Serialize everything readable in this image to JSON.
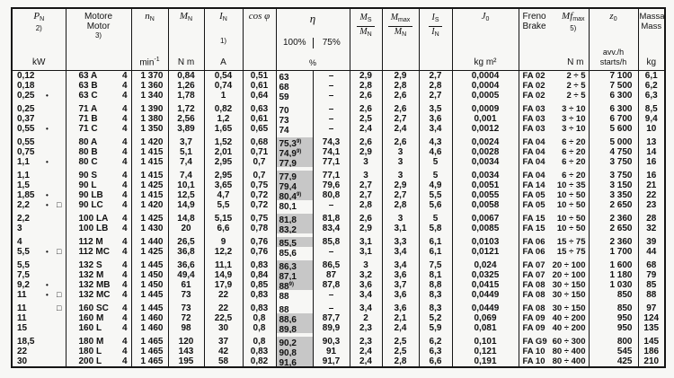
{
  "header": {
    "pn": {
      "sym": "P",
      "sub": "N",
      "note": "2)",
      "unit": "kW"
    },
    "motor": {
      "line1": "Motore",
      "line2": "Motor",
      "note": "3)"
    },
    "n": {
      "sym": "n",
      "sub": "N",
      "unit": "min",
      "unit_sup": "-1"
    },
    "mn": {
      "sym": "M",
      "sub": "N",
      "unit": "N m"
    },
    "iN": {
      "sym": "I",
      "sub": "N",
      "note": "1)",
      "unit": "A"
    },
    "cosphi": {
      "label": "cos φ"
    },
    "eta": {
      "sym": "η",
      "c100": "100%",
      "c75": "75%",
      "unit": "%"
    },
    "ms": {
      "num": "M",
      "num_sub": "S",
      "den": "M",
      "den_sub": "N"
    },
    "mmax": {
      "num": "M",
      "num_sub": "max",
      "den": "M",
      "den_sub": "N"
    },
    "iS": {
      "num": "I",
      "num_sub": "S",
      "den": "I",
      "den_sub": "N"
    },
    "j0": {
      "sym": "J",
      "sub": "0",
      "unit": "kg m²"
    },
    "brake": {
      "line1": "Freno",
      "line2": "Brake",
      "sym": "Mf",
      "sym_sub": "max",
      "note": "5)",
      "unit": "N m"
    },
    "z0": {
      "sym": "z",
      "sub": "0",
      "unit1": "avv./h",
      "unit2": "starts/h"
    },
    "mass": {
      "line1": "Massa",
      "line2": "Mass",
      "unit": "kg"
    }
  },
  "rows": [
    {
      "pn": "0,12",
      "mk1": "",
      "mk2": "",
      "motor": "63 A",
      "poles": "4",
      "n": "1 370",
      "mn": "0,84",
      "iN": "0,54",
      "cos": "0,51",
      "e100": "63",
      "e100sup": "",
      "hl": false,
      "e75": "–",
      "ms": "2,9",
      "mmax": "2,9",
      "iS": "2,7",
      "j0": "0,0004",
      "bcode": "FA 02",
      "brange": "2 ÷ 5",
      "z0": "7 100",
      "mass": "6,1",
      "gs": false
    },
    {
      "pn": "0,18",
      "mk1": "",
      "mk2": "",
      "motor": "63 B",
      "poles": "4",
      "n": "1 360",
      "mn": "1,26",
      "iN": "0,74",
      "cos": "0,61",
      "e100": "68",
      "e100sup": "",
      "hl": false,
      "e75": "–",
      "ms": "2,8",
      "mmax": "2,8",
      "iS": "2,8",
      "j0": "0,0004",
      "bcode": "FA 02",
      "brange": "2 ÷ 5",
      "z0": "7 500",
      "mass": "6,2",
      "gs": false
    },
    {
      "pn": "0,25",
      "mk1": "•",
      "mk2": "",
      "motor": "63 C",
      "poles": "4",
      "n": "1 340",
      "mn": "1,78",
      "iN": "1",
      "cos": "0,64",
      "e100": "59",
      "e100sup": "",
      "hl": false,
      "e75": "–",
      "ms": "2,6",
      "mmax": "2,6",
      "iS": "2,7",
      "j0": "0,0005",
      "bcode": "FA 02",
      "brange": "2 ÷ 5",
      "z0": "6 300",
      "mass": "6,3",
      "gs": false
    },
    {
      "pn": "0,25",
      "mk1": "",
      "mk2": "",
      "motor": "71 A",
      "poles": "4",
      "n": "1 390",
      "mn": "1,72",
      "iN": "0,82",
      "cos": "0,63",
      "e100": "70",
      "e100sup": "",
      "hl": false,
      "e75": "–",
      "ms": "2,6",
      "mmax": "2,6",
      "iS": "3,5",
      "j0": "0,0009",
      "bcode": "FA 03",
      "brange": "3 ÷ 10",
      "z0": "6 300",
      "mass": "8,5",
      "gs": true
    },
    {
      "pn": "0,37",
      "mk1": "",
      "mk2": "",
      "motor": "71 B",
      "poles": "4",
      "n": "1 380",
      "mn": "2,56",
      "iN": "1,2",
      "cos": "0,61",
      "e100": "73",
      "e100sup": "",
      "hl": false,
      "e75": "–",
      "ms": "2,5",
      "mmax": "2,7",
      "iS": "3,6",
      "j0": "0,001",
      "bcode": "FA 03",
      "brange": "3 ÷ 10",
      "z0": "6 700",
      "mass": "9,4",
      "gs": false
    },
    {
      "pn": "0,55",
      "mk1": "•",
      "mk2": "",
      "motor": "71 C",
      "poles": "4",
      "n": "1 350",
      "mn": "3,89",
      "iN": "1,65",
      "cos": "0,65",
      "e100": "74",
      "e100sup": "",
      "hl": false,
      "e75": "–",
      "ms": "2,4",
      "mmax": "2,4",
      "iS": "3,4",
      "j0": "0,0012",
      "bcode": "FA 03",
      "brange": "3 ÷ 10",
      "z0": "5 600",
      "mass": "10",
      "gs": false
    },
    {
      "pn": "0,55",
      "mk1": "",
      "mk2": "",
      "motor": "80 A",
      "poles": "4",
      "n": "1 420",
      "mn": "3,7",
      "iN": "1,52",
      "cos": "0,68",
      "e100": "75,3",
      "e100sup": "9)",
      "hl": true,
      "e75": "74,3",
      "ms": "2,6",
      "mmax": "2,6",
      "iS": "4,3",
      "j0": "0,0024",
      "bcode": "FA 04",
      "brange": "6 ÷ 20",
      "z0": "5 000",
      "mass": "13",
      "gs": true
    },
    {
      "pn": "0,75",
      "mk1": "",
      "mk2": "",
      "motor": "80 B",
      "poles": "4",
      "n": "1 415",
      "mn": "5,1",
      "iN": "2,01",
      "cos": "0,71",
      "e100": "74,9",
      "e100sup": "9)",
      "hl": true,
      "e75": "74,1",
      "ms": "2,9",
      "mmax": "3",
      "iS": "4,6",
      "j0": "0,0028",
      "bcode": "FA 04",
      "brange": "6 ÷ 20",
      "z0": "4 750",
      "mass": "14",
      "gs": false
    },
    {
      "pn": "1,1",
      "mk1": "•",
      "mk2": "",
      "motor": "80 C",
      "poles": "4",
      "n": "1 415",
      "mn": "7,4",
      "iN": "2,95",
      "cos": "0,7",
      "e100": "77,9",
      "e100sup": "",
      "hl": true,
      "e75": "77,1",
      "ms": "3",
      "mmax": "3",
      "iS": "5",
      "j0": "0,0034",
      "bcode": "FA 04",
      "brange": "6 ÷ 20",
      "z0": "3 750",
      "mass": "16",
      "gs": false
    },
    {
      "pn": "1,1",
      "mk1": "",
      "mk2": "",
      "motor": "90 S",
      "poles": "4",
      "n": "1 415",
      "mn": "7,4",
      "iN": "2,95",
      "cos": "0,7",
      "e100": "77,9",
      "e100sup": "",
      "hl": true,
      "e75": "77,1",
      "ms": "3",
      "mmax": "3",
      "iS": "5",
      "j0": "0,0034",
      "bcode": "FA 04",
      "brange": "6 ÷ 20",
      "z0": "3 750",
      "mass": "16",
      "gs": true
    },
    {
      "pn": "1,5",
      "mk1": "",
      "mk2": "",
      "motor": "90 L",
      "poles": "4",
      "n": "1 425",
      "mn": "10,1",
      "iN": "3,65",
      "cos": "0,75",
      "e100": "79,4",
      "e100sup": "",
      "hl": true,
      "e75": "79,6",
      "ms": "2,7",
      "mmax": "2,9",
      "iS": "4,9",
      "j0": "0,0051",
      "bcode": "FA 14",
      "brange": "10 ÷ 35",
      "z0": "3 150",
      "mass": "21",
      "gs": false
    },
    {
      "pn": "1,85",
      "mk1": "•",
      "mk2": "",
      "motor": "90 LB",
      "poles": "4",
      "n": "1 415",
      "mn": "12,5",
      "iN": "4,7",
      "cos": "0,72",
      "e100": "80,4",
      "e100sup": "9)",
      "hl": true,
      "e75": "80,8",
      "ms": "2,7",
      "mmax": "2,7",
      "iS": "5,5",
      "j0": "0,0055",
      "bcode": "FA 05",
      "brange": "10 ÷ 50",
      "z0": "3 350",
      "mass": "22",
      "gs": false
    },
    {
      "pn": "2,2",
      "mk1": "•",
      "mk2": "□",
      "motor": "90 LC",
      "poles": "4",
      "n": "1 420",
      "mn": "14,9",
      "iN": "5,5",
      "cos": "0,72",
      "e100": "80,1",
      "e100sup": "",
      "hl": false,
      "e75": "–",
      "ms": "2,8",
      "mmax": "2,8",
      "iS": "5,6",
      "j0": "0,0058",
      "bcode": "FA 05",
      "brange": "10 ÷ 50",
      "z0": "2 650",
      "mass": "23",
      "gs": false
    },
    {
      "pn": "2,2",
      "mk1": "",
      "mk2": "",
      "motor": "100 LA",
      "poles": "4",
      "n": "1 425",
      "mn": "14,8",
      "iN": "5,15",
      "cos": "0,75",
      "e100": "81,8",
      "e100sup": "",
      "hl": true,
      "e75": "81,8",
      "ms": "2,6",
      "mmax": "3",
      "iS": "5",
      "j0": "0,0067",
      "bcode": "FA 15",
      "brange": "10 ÷ 50",
      "z0": "2 360",
      "mass": "28",
      "gs": true
    },
    {
      "pn": "3",
      "mk1": "",
      "mk2": "",
      "motor": "100 LB",
      "poles": "4",
      "n": "1 430",
      "mn": "20",
      "iN": "6,6",
      "cos": "0,78",
      "e100": "83,2",
      "e100sup": "",
      "hl": true,
      "e75": "83,4",
      "ms": "2,9",
      "mmax": "3,1",
      "iS": "5,8",
      "j0": "0,0085",
      "bcode": "FA 15",
      "brange": "10 ÷ 50",
      "z0": "2 650",
      "mass": "32",
      "gs": false
    },
    {
      "pn": "4",
      "mk1": "",
      "mk2": "",
      "motor": "112 M",
      "poles": "4",
      "n": "1 440",
      "mn": "26,5",
      "iN": "9",
      "cos": "0,76",
      "e100": "85,5",
      "e100sup": "",
      "hl": true,
      "e75": "85,8",
      "ms": "3,1",
      "mmax": "3,3",
      "iS": "6,1",
      "j0": "0,0103",
      "bcode": "FA 06",
      "brange": "15 ÷ 75",
      "z0": "2 360",
      "mass": "39",
      "gs": true
    },
    {
      "pn": "5,5",
      "mk1": "•",
      "mk2": "□",
      "motor": "112 MC",
      "poles": "4",
      "n": "1 425",
      "mn": "36,8",
      "iN": "12,2",
      "cos": "0,76",
      "e100": "85,6",
      "e100sup": "",
      "hl": false,
      "e75": "–",
      "ms": "3,1",
      "mmax": "3,4",
      "iS": "6,1",
      "j0": "0,0121",
      "bcode": "FA 06",
      "brange": "15 ÷ 75",
      "z0": "1 700",
      "mass": "44",
      "gs": false
    },
    {
      "pn": "5,5",
      "mk1": "",
      "mk2": "",
      "motor": "132 S",
      "poles": "4",
      "n": "1 445",
      "mn": "36,6",
      "iN": "11,1",
      "cos": "0,83",
      "e100": "86,3",
      "e100sup": "",
      "hl": true,
      "e75": "86,5",
      "ms": "3",
      "mmax": "3,4",
      "iS": "7,5",
      "j0": "0,024",
      "bcode": "FA 07",
      "brange": "20 ÷ 100",
      "z0": "1 600",
      "mass": "68",
      "gs": true
    },
    {
      "pn": "7,5",
      "mk1": "",
      "mk2": "",
      "motor": "132 M",
      "poles": "4",
      "n": "1 450",
      "mn": "49,4",
      "iN": "14,9",
      "cos": "0,84",
      "e100": "87,1",
      "e100sup": "",
      "hl": true,
      "e75": "87",
      "ms": "3,2",
      "mmax": "3,6",
      "iS": "8,1",
      "j0": "0,0325",
      "bcode": "FA 07",
      "brange": "20 ÷ 100",
      "z0": "1 180",
      "mass": "79",
      "gs": false
    },
    {
      "pn": "9,2",
      "mk1": "•",
      "mk2": "",
      "motor": "132 MB",
      "poles": "4",
      "n": "1 450",
      "mn": "61",
      "iN": "17,9",
      "cos": "0,85",
      "e100": "88",
      "e100sup": "9)",
      "hl": true,
      "e75": "87,8",
      "ms": "3,6",
      "mmax": "3,7",
      "iS": "8,8",
      "j0": "0,0415",
      "bcode": "FA 08",
      "brange": "30 ÷ 150",
      "z0": "1 030",
      "mass": "85",
      "gs": false
    },
    {
      "pn": "11",
      "mk1": "•",
      "mk2": "□",
      "motor": "132 MC",
      "poles": "4",
      "n": "1 445",
      "mn": "73",
      "iN": "22",
      "cos": "0,83",
      "e100": "88",
      "e100sup": "",
      "hl": false,
      "e75": "–",
      "ms": "3,4",
      "mmax": "3,6",
      "iS": "8,3",
      "j0": "0,0449",
      "bcode": "FA 08",
      "brange": "30 ÷ 150",
      "z0": "850",
      "mass": "88",
      "gs": false
    },
    {
      "pn": "11",
      "mk1": "",
      "mk2": "□",
      "motor": "160 SC",
      "poles": "4",
      "n": "1 445",
      "mn": "73",
      "iN": "22",
      "cos": "0,83",
      "e100": "88",
      "e100sup": "",
      "hl": false,
      "e75": "–",
      "ms": "3,4",
      "mmax": "3,6",
      "iS": "8,3",
      "j0": "0,0449",
      "bcode": "FA 08",
      "brange": "30 ÷ 150",
      "z0": "850",
      "mass": "97",
      "gs": true
    },
    {
      "pn": "11",
      "mk1": "",
      "mk2": "",
      "motor": "160 M",
      "poles": "4",
      "n": "1 460",
      "mn": "72",
      "iN": "22,5",
      "cos": "0,8",
      "e100": "88,6",
      "e100sup": "",
      "hl": true,
      "e75": "87,7",
      "ms": "2",
      "mmax": "2,1",
      "iS": "5,2",
      "j0": "0,069",
      "bcode": "FA 09",
      "brange": "40 ÷ 200",
      "z0": "950",
      "mass": "124",
      "gs": false
    },
    {
      "pn": "15",
      "mk1": "",
      "mk2": "",
      "motor": "160 L",
      "poles": "4",
      "n": "1 460",
      "mn": "98",
      "iN": "30",
      "cos": "0,8",
      "e100": "89,8",
      "e100sup": "",
      "hl": true,
      "e75": "89,9",
      "ms": "2,3",
      "mmax": "2,4",
      "iS": "5,9",
      "j0": "0,081",
      "bcode": "FA 09",
      "brange": "40 ÷ 200",
      "z0": "950",
      "mass": "135",
      "gs": false
    },
    {
      "pn": "18,5",
      "mk1": "",
      "mk2": "",
      "motor": "180 M",
      "poles": "4",
      "n": "1 465",
      "mn": "120",
      "iN": "37",
      "cos": "0,8",
      "e100": "90,2",
      "e100sup": "",
      "hl": true,
      "e75": "90,3",
      "ms": "2,3",
      "mmax": "2,5",
      "iS": "6,2",
      "j0": "0,101",
      "bcode": "FA G9",
      "brange": "60 ÷ 300",
      "z0": "800",
      "mass": "145",
      "gs": true
    },
    {
      "pn": "22",
      "mk1": "",
      "mk2": "",
      "motor": "180 L",
      "poles": "4",
      "n": "1 465",
      "mn": "143",
      "iN": "42",
      "cos": "0,83",
      "e100": "90,8",
      "e100sup": "",
      "hl": true,
      "e75": "91",
      "ms": "2,4",
      "mmax": "2,5",
      "iS": "6,3",
      "j0": "0,121",
      "bcode": "FA 10",
      "brange": "80 ÷ 400",
      "z0": "545",
      "mass": "186",
      "gs": false
    },
    {
      "pn": "30",
      "mk1": "",
      "mk2": "",
      "motor": "200 L",
      "poles": "4",
      "n": "1 465",
      "mn": "195",
      "iN": "58",
      "cos": "0,82",
      "e100": "91,6",
      "e100sup": "",
      "hl": true,
      "e75": "91,7",
      "ms": "2,4",
      "mmax": "2,8",
      "iS": "6,6",
      "j0": "0,191",
      "bcode": "FA 10",
      "brange": "80 ÷ 400",
      "z0": "425",
      "mass": "210",
      "gs": false
    }
  ]
}
